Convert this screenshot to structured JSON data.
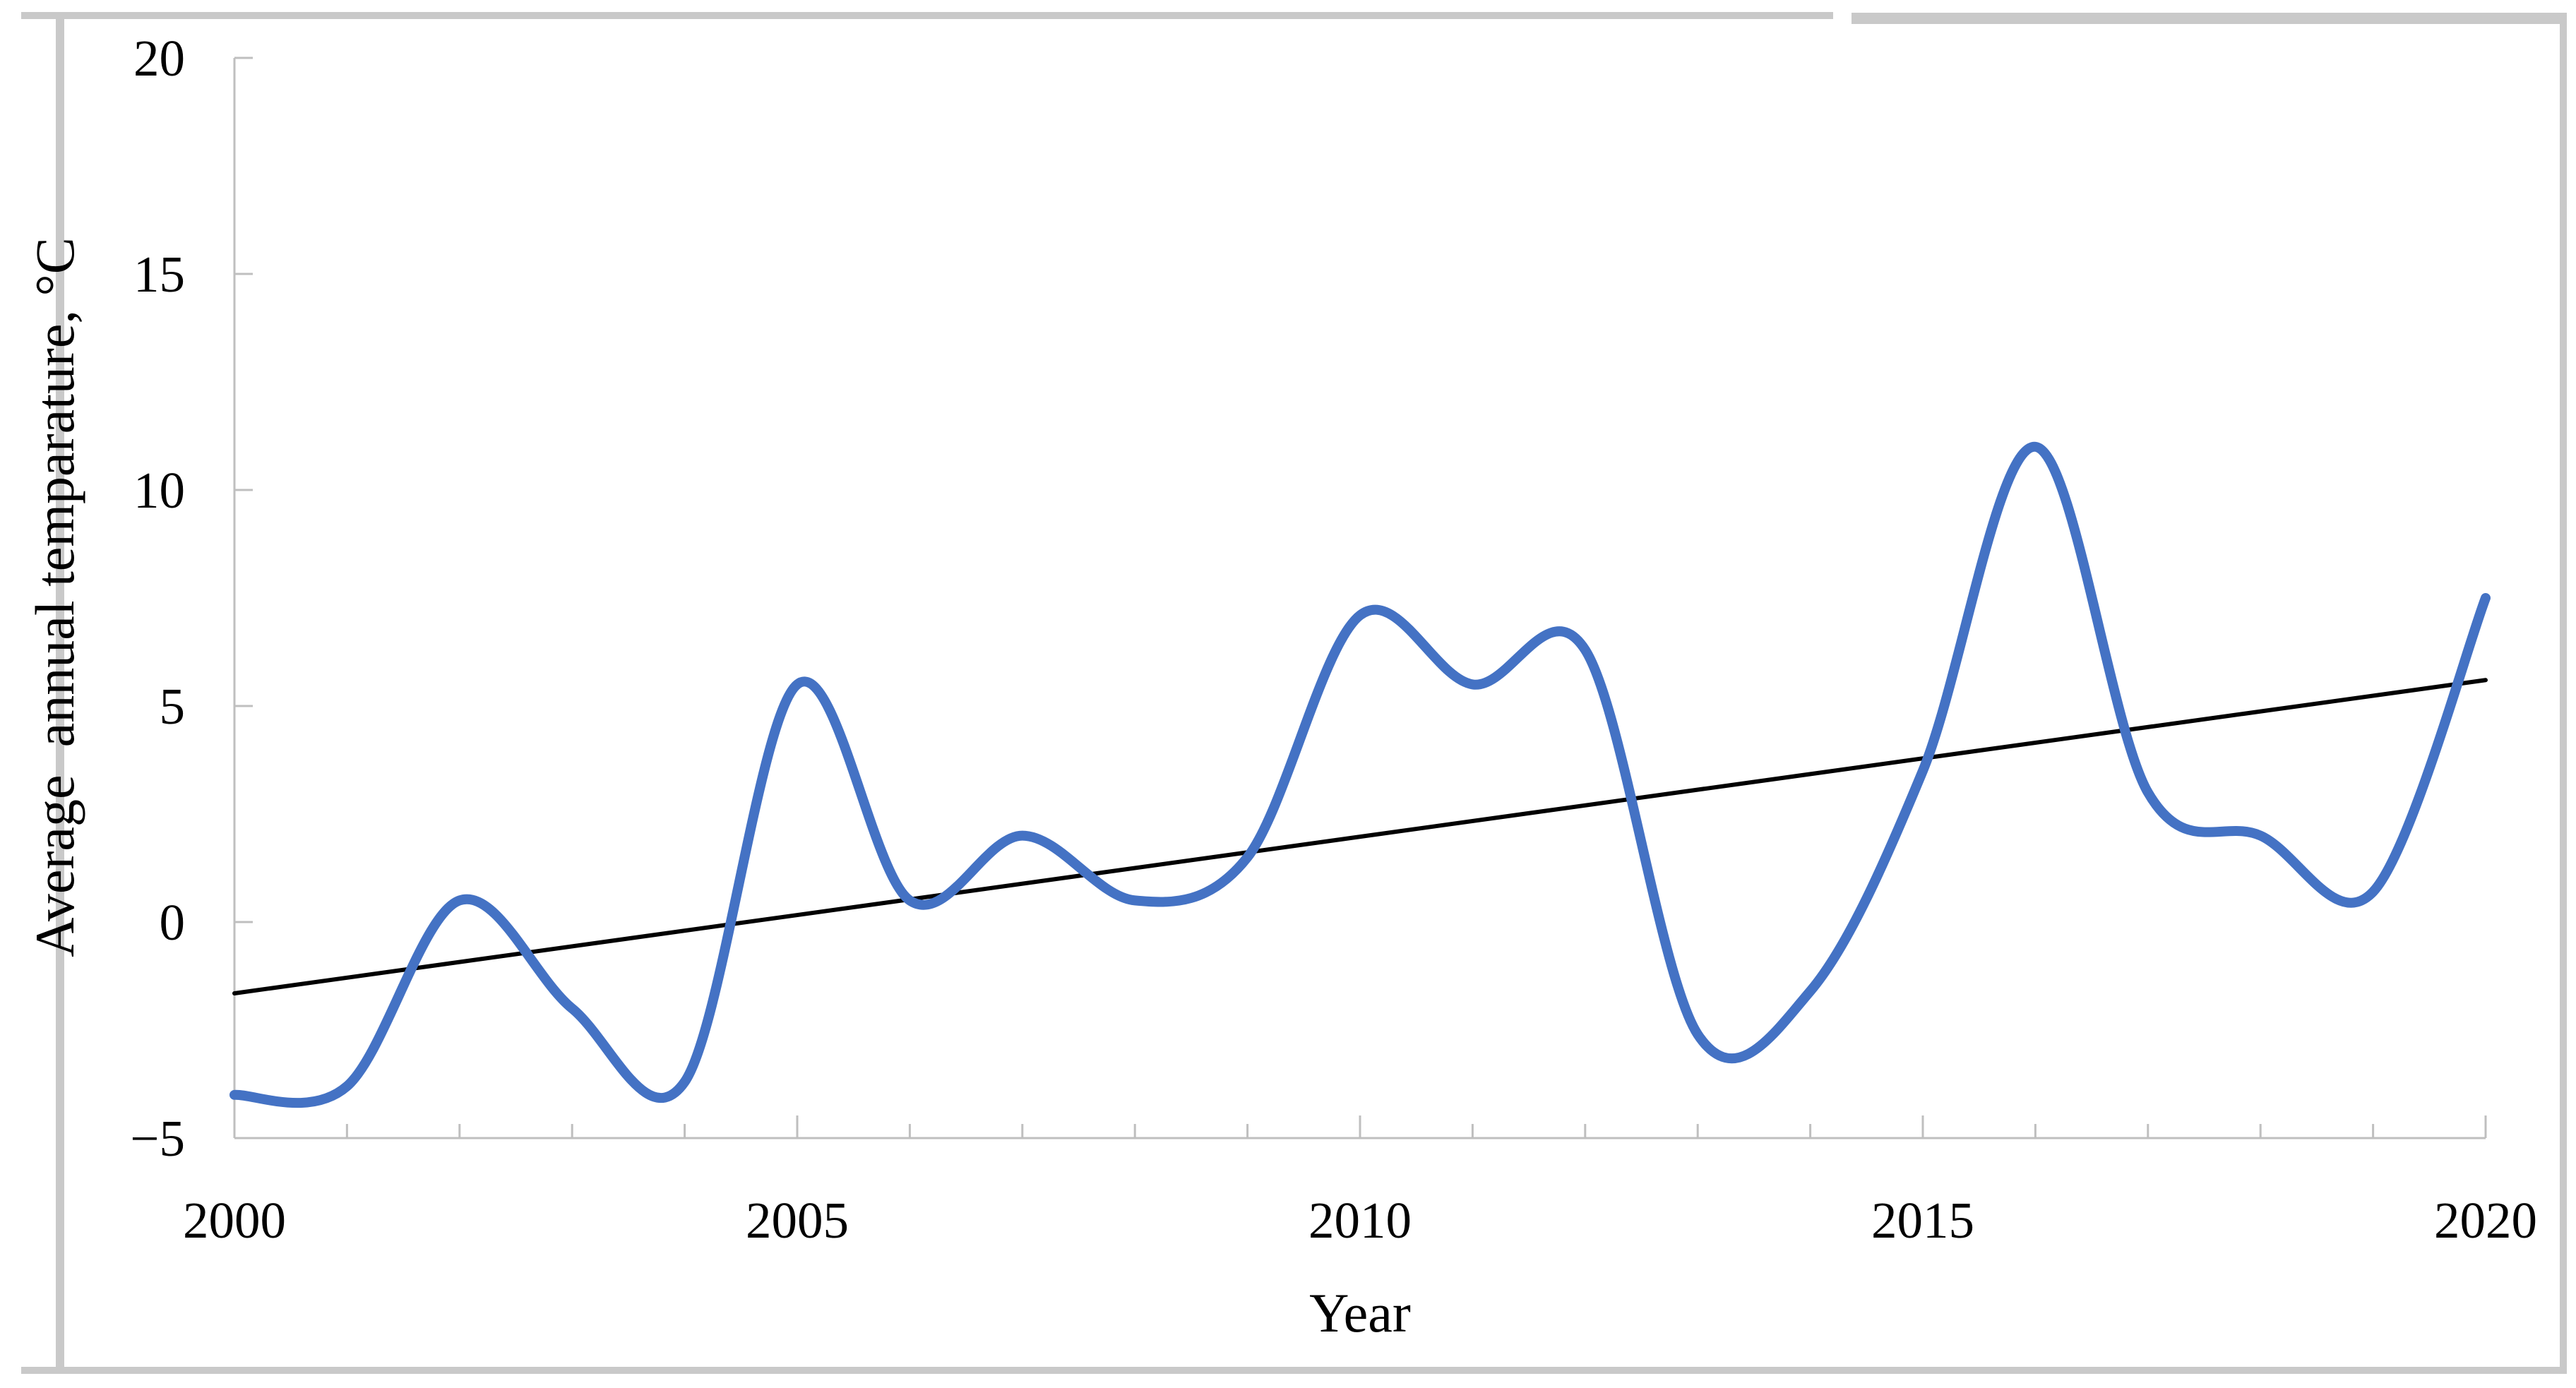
{
  "figure": {
    "xlabel": "Year",
    "ylabel": "Average  annual temparature, °C"
  },
  "chart_data": {
    "type": "line",
    "title": "",
    "xlabel": "Year",
    "ylabel": "Average  annual temparature, °C",
    "x": [
      2000,
      2001,
      2002,
      2003,
      2004,
      2005,
      2006,
      2007,
      2008,
      2009,
      2010,
      2011,
      2012,
      2013,
      2014,
      2015,
      2016,
      2017,
      2018,
      2019,
      2020
    ],
    "series": [
      {
        "name": "average-annual-temperature",
        "color": "#4472C4",
        "smooth": true,
        "line_width": 14,
        "values": [
          -4.0,
          -3.8,
          0.5,
          -2.0,
          -3.7,
          5.5,
          0.5,
          2.0,
          0.5,
          1.5,
          7.1,
          5.5,
          6.3,
          -2.6,
          -1.6,
          3.5,
          11.0,
          3.0,
          2.0,
          0.7,
          7.5
        ]
      }
    ],
    "trendline": {
      "name": "linear-trend",
      "color": "#000000",
      "line_width": 6,
      "x": [
        2000,
        2020
      ],
      "values": [
        -1.65,
        5.6
      ]
    },
    "xlim": [
      2000,
      2020
    ],
    "ylim": [
      -5,
      20
    ],
    "xticks": [
      2000,
      2005,
      2010,
      2015,
      2020
    ],
    "x_minor_tick_step": 1,
    "yticks": [
      -5,
      0,
      5,
      10,
      15,
      20
    ],
    "grid": false,
    "legend": false,
    "tick_style": "inside",
    "axis_color": "#BFBFBF",
    "border_color": "#C9C9C9",
    "text_color": "#000000",
    "background": "#FFFFFF"
  }
}
